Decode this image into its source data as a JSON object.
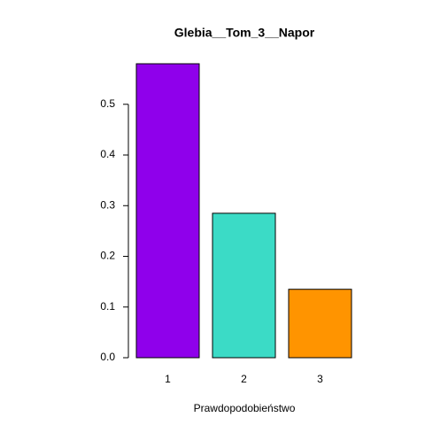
{
  "chart_data": {
    "type": "bar",
    "title": "Glebia__Tom_3__Napor",
    "x_label": "Prawdopodobieństwo",
    "categories": [
      "1",
      "2",
      "3"
    ],
    "series": [
      {
        "name": null,
        "colors": [
          "#8f00eb",
          "#3bdbc6",
          "#ff9400"
        ],
        "values": [
          0.58,
          0.285,
          0.135
        ]
      }
    ],
    "ylim": [
      0,
      0.58
    ],
    "yticks": [
      {
        "value": 0,
        "label": "0.0"
      },
      0.1,
      0.2,
      0.3,
      0.4,
      0.5
    ],
    "grid": false
  }
}
